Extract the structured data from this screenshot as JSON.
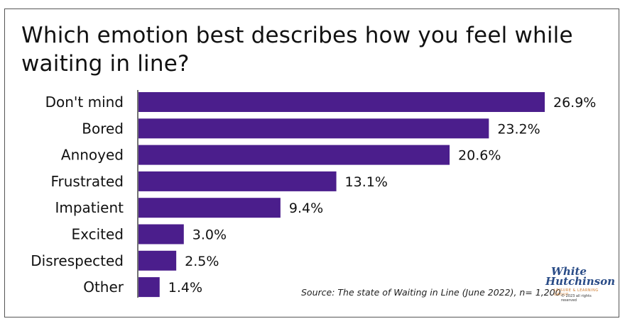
{
  "chart_data": {
    "type": "bar",
    "orientation": "horizontal",
    "title": "Which emotion best describes how you feel while waiting in line?",
    "title_lines": [
      "Which emotion best describes how you feel while",
      "waiting in line?"
    ],
    "categories": [
      "Don't mind",
      "Bored",
      "Annoyed",
      "Frustrated",
      "Impatient",
      "Excited",
      "Disrespected",
      "Other"
    ],
    "values": [
      26.9,
      23.2,
      20.6,
      13.1,
      9.4,
      3.0,
      2.5,
      1.4
    ],
    "value_labels": [
      "26.9%",
      "23.2%",
      "20.6%",
      "13.1%",
      "9.4%",
      "3.0%",
      "2.5%",
      "1.4%"
    ],
    "xlim": [
      0,
      26.9
    ],
    "grid": false,
    "bar_color": "#4b1e8c",
    "source": "Source: The state of Waiting in Line (June 2022), n= 1,200"
  },
  "logo": {
    "line1": "White",
    "line2": "Hutchinson",
    "tagline": "LEISURE & LEARNING GROUP",
    "copyright": "© 2023 all rights reserved"
  }
}
